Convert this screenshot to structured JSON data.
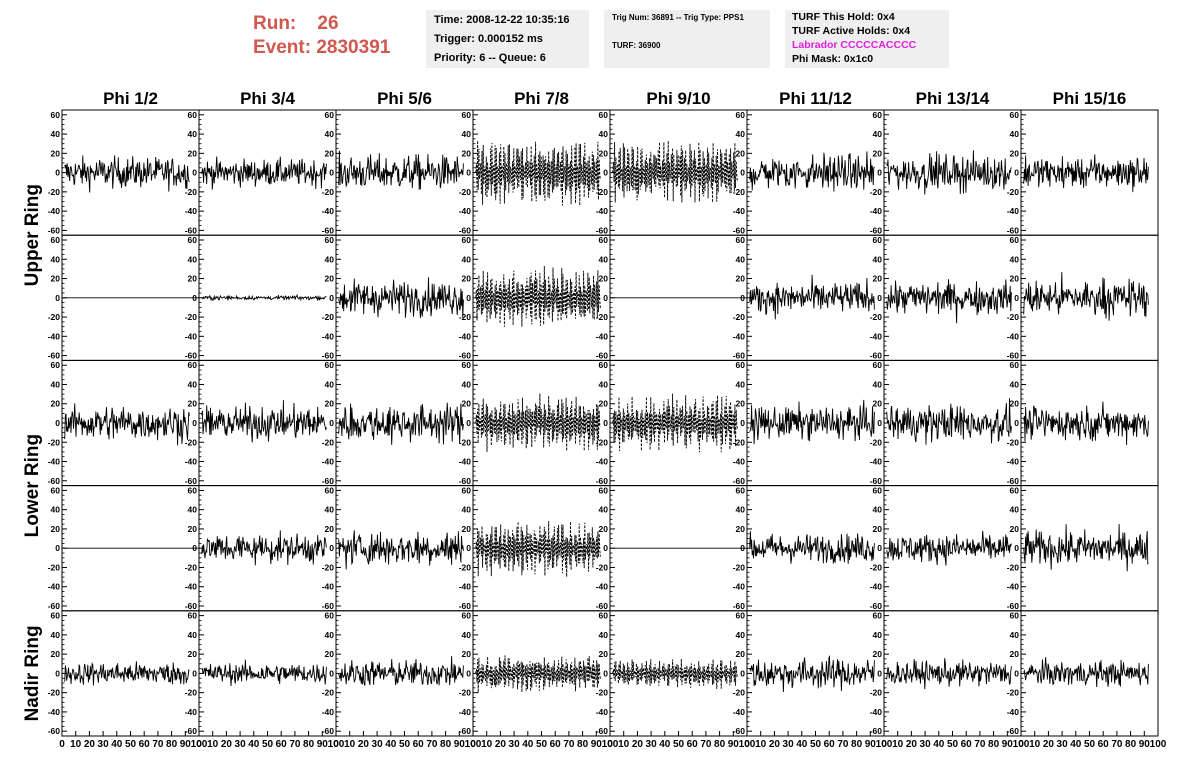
{
  "header": {
    "run_label": "Run:",
    "run_value": "26",
    "event_label": "Event:",
    "event_value": "2830391"
  },
  "info": {
    "time": "Time: 2008-12-22 10:35:16",
    "trigger": "Trigger: 0.000152 ms",
    "priority": "Priority: 6 -- Queue: 6",
    "trig_num": "Trig Num: 36891 -- Trig Type: PPS1",
    "turf": "TURF: 36900",
    "turf_hold": "TURF This Hold: 0x4",
    "turf_active": "TURF Active Holds: 0x4",
    "labrador": "Labrador CCCCCACCCC",
    "phi_mask": "Phi Mask: 0x1c0"
  },
  "colors": {
    "header_red": "#d0584f",
    "labrador_magenta": "#e020e0",
    "info_bg": "#efefef"
  },
  "chart_data": {
    "type": "line",
    "columns": [
      "Phi 1/2",
      "Phi 3/4",
      "Phi 5/6",
      "Phi 7/8",
      "Phi 9/10",
      "Phi 11/12",
      "Phi 13/14",
      "Phi 15/16"
    ],
    "row_labels": [
      "Upper Ring",
      "Lower Ring",
      "Nadir Ring"
    ],
    "xlim": [
      0,
      100
    ],
    "x_ticks": [
      0,
      10,
      20,
      30,
      40,
      50,
      60,
      70,
      80,
      90,
      100
    ],
    "ylim": [
      -65,
      65
    ],
    "y_ticks": [
      -60,
      -40,
      -20,
      0,
      20,
      40,
      60
    ],
    "y_tick_labels": [
      "-60",
      "-40",
      "-20",
      "0",
      "20",
      "40",
      "60"
    ],
    "panels": [
      [
        {
          "amp": 15,
          "style": "solid"
        },
        {
          "amp": 13,
          "style": "solid"
        },
        {
          "amp": 17,
          "style": "solid"
        },
        {
          "amp": 25,
          "style": "dashed"
        },
        {
          "amp": 24,
          "style": "dashed"
        },
        {
          "amp": 17,
          "style": "solid"
        },
        {
          "amp": 17,
          "style": "solid"
        },
        {
          "amp": 15,
          "style": "solid"
        }
      ],
      [
        {
          "amp": 0,
          "style": "solid"
        },
        {
          "amp": 2,
          "style": "solid"
        },
        {
          "amp": 17,
          "style": "solid"
        },
        {
          "amp": 24,
          "style": "dashed"
        },
        {
          "amp": 0,
          "style": "solid"
        },
        {
          "amp": 15,
          "style": "solid"
        },
        {
          "amp": 16,
          "style": "solid"
        },
        {
          "amp": 18,
          "style": "solid"
        }
      ],
      [
        {
          "amp": 17,
          "style": "solid"
        },
        {
          "amp": 16,
          "style": "solid"
        },
        {
          "amp": 18,
          "style": "solid"
        },
        {
          "amp": 22,
          "style": "dashed"
        },
        {
          "amp": 22,
          "style": "dashed"
        },
        {
          "amp": 16,
          "style": "solid"
        },
        {
          "amp": 18,
          "style": "solid"
        },
        {
          "amp": 16,
          "style": "solid"
        }
      ],
      [
        {
          "amp": 0,
          "style": "solid"
        },
        {
          "amp": 14,
          "style": "solid"
        },
        {
          "amp": 17,
          "style": "solid"
        },
        {
          "amp": 22,
          "style": "dashed"
        },
        {
          "amp": 0,
          "style": "solid"
        },
        {
          "amp": 14,
          "style": "solid"
        },
        {
          "amp": 14,
          "style": "solid"
        },
        {
          "amp": 17,
          "style": "solid"
        }
      ],
      [
        {
          "amp": 11,
          "style": "solid"
        },
        {
          "amp": 10,
          "style": "solid"
        },
        {
          "amp": 13,
          "style": "solid"
        },
        {
          "amp": 15,
          "style": "dashed"
        },
        {
          "amp": 12,
          "style": "dashed"
        },
        {
          "amp": 15,
          "style": "solid"
        },
        {
          "amp": 12,
          "style": "solid"
        },
        {
          "amp": 12,
          "style": "solid"
        }
      ]
    ]
  }
}
